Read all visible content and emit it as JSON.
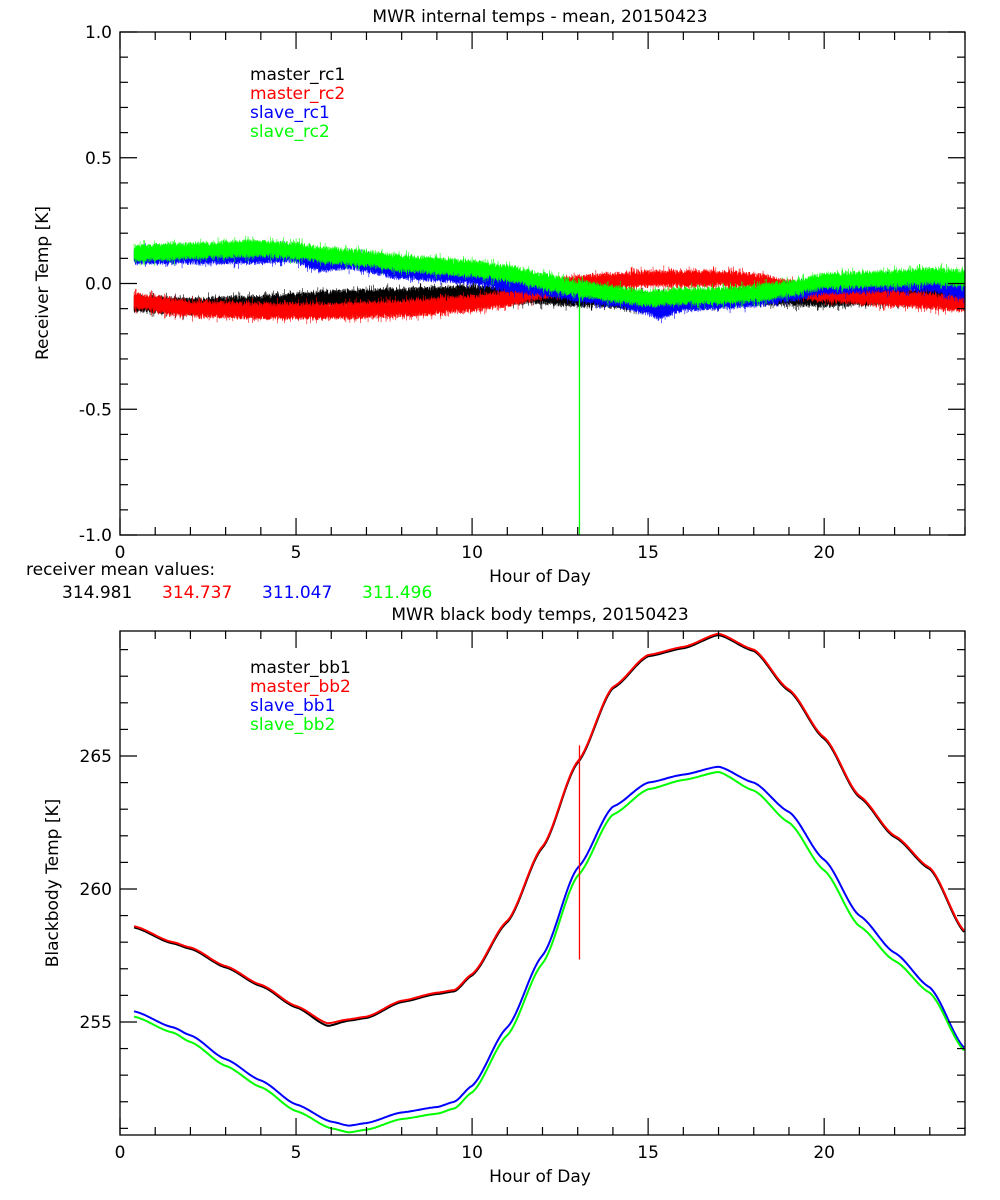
{
  "figure": {
    "receiver_mean_label": "receiver mean values:",
    "receiver_mean_values": [
      {
        "text": "314.981",
        "color": "#000000"
      },
      {
        "text": "314.737",
        "color": "#ff0000"
      },
      {
        "text": "311.047",
        "color": "#0000ff"
      },
      {
        "text": "311.496",
        "color": "#00ff00"
      }
    ]
  },
  "chart_data": [
    {
      "type": "line",
      "title": "MWR internal temps - mean, 20150423",
      "xlabel": "Hour of Day",
      "ylabel": "Receiver Temp [K]",
      "xlim": [
        0,
        24
      ],
      "ylim": [
        -1.0,
        1.0
      ],
      "xticks": [
        0,
        5,
        10,
        15,
        20
      ],
      "xtick_labels": [
        "0",
        "5",
        "10",
        "15",
        "20"
      ],
      "x_minor_step": 1,
      "yticks": [
        -1.0,
        -0.5,
        0.0,
        0.5,
        1.0
      ],
      "ytick_labels": [
        "-1.0",
        "-0.5",
        "0.0",
        "0.5",
        "1.0"
      ],
      "y_minor_step": 0.1,
      "grid": false,
      "legend_position": "top-left",
      "noisy": true,
      "series": [
        {
          "name": "master_rc1",
          "color": "#000000",
          "x": [
            0.4,
            2,
            4,
            6,
            8,
            10,
            12,
            13,
            15,
            17,
            18,
            20,
            22,
            24
          ],
          "y": [
            -0.08,
            -0.09,
            -0.08,
            -0.06,
            -0.05,
            -0.04,
            -0.05,
            -0.06,
            -0.07,
            -0.06,
            -0.05,
            -0.06,
            -0.05,
            -0.05
          ]
        },
        {
          "name": "master_rc2",
          "color": "#ff0000",
          "x": [
            0.4,
            2,
            4,
            6,
            8,
            10,
            11,
            12,
            13,
            14,
            15,
            17,
            18,
            19,
            20,
            22,
            24
          ],
          "y": [
            -0.07,
            -0.1,
            -0.11,
            -0.11,
            -0.1,
            -0.08,
            -0.06,
            -0.03,
            0.0,
            0.01,
            0.02,
            0.02,
            0.01,
            -0.02,
            -0.04,
            -0.06,
            -0.08
          ]
        },
        {
          "name": "slave_rc1",
          "color": "#0000ff",
          "x": [
            0.4,
            2,
            4,
            4.8,
            5.7,
            6.5,
            8,
            10,
            11,
            12,
            13,
            14,
            15,
            15.3,
            16,
            17,
            18,
            19,
            20,
            22,
            23,
            24
          ],
          "y": [
            0.11,
            0.11,
            0.11,
            0.12,
            0.08,
            0.09,
            0.05,
            0.03,
            0.0,
            -0.02,
            -0.04,
            -0.06,
            -0.09,
            -0.11,
            -0.08,
            -0.07,
            -0.06,
            -0.04,
            -0.01,
            0.0,
            0.0,
            -0.03
          ]
        },
        {
          "name": "slave_rc2",
          "color": "#00ff00",
          "x": [
            0.4,
            2,
            4,
            5,
            6,
            7,
            8,
            10,
            11,
            12,
            13,
            14,
            15,
            16,
            17,
            18,
            19,
            20,
            22,
            23,
            24
          ],
          "y": [
            0.12,
            0.13,
            0.14,
            0.13,
            0.11,
            0.1,
            0.08,
            0.06,
            0.04,
            0.01,
            -0.02,
            -0.04,
            -0.06,
            -0.05,
            -0.05,
            -0.04,
            -0.02,
            0.01,
            0.02,
            0.03,
            0.02
          ]
        }
      ],
      "annotations": [
        {
          "type": "spike",
          "series": "slave_rc2",
          "x": 13.05,
          "y_from": -0.01,
          "y_to": -1.0,
          "color": "#00ff00"
        }
      ]
    },
    {
      "type": "line",
      "title": "MWR black body temps, 20150423",
      "xlabel": "Hour of Day",
      "ylabel": "Blackbody Temp [K]",
      "xlim": [
        0,
        24
      ],
      "ylim": [
        250.75,
        269.7
      ],
      "xticks": [
        0,
        5,
        10,
        15,
        20
      ],
      "xtick_labels": [
        "0",
        "5",
        "10",
        "15",
        "20"
      ],
      "x_minor_step": 1,
      "yticks": [
        255,
        260,
        265
      ],
      "ytick_labels": [
        "255",
        "260",
        "265"
      ],
      "y_minor_step": 1,
      "grid": false,
      "legend_position": "top-left",
      "noisy": false,
      "series": [
        {
          "name": "master_bb1",
          "color": "#000000",
          "x": [
            0.4,
            1.5,
            2,
            3,
            4,
            5,
            5.9,
            6.5,
            7,
            8,
            9,
            9.5,
            10,
            11,
            12,
            13,
            14,
            15,
            16,
            17,
            18,
            19,
            20,
            21,
            22,
            23,
            24
          ],
          "y": [
            258.55,
            257.95,
            257.75,
            257.05,
            256.35,
            255.55,
            254.85,
            255.05,
            255.15,
            255.75,
            256.05,
            256.15,
            256.75,
            258.75,
            261.55,
            264.75,
            267.55,
            268.75,
            269.05,
            269.55,
            268.95,
            267.45,
            265.65,
            263.45,
            261.95,
            260.75,
            258.35
          ]
        },
        {
          "name": "master_bb2",
          "color": "#ff0000",
          "x": [
            0.4,
            1.5,
            2,
            3,
            4,
            5,
            5.9,
            6.5,
            7,
            8,
            9,
            9.5,
            10,
            11,
            12,
            13,
            14,
            15,
            16,
            17,
            18,
            19,
            20,
            21,
            22,
            23,
            24
          ],
          "y": [
            258.6,
            258.0,
            257.8,
            257.1,
            256.4,
            255.6,
            254.95,
            255.1,
            255.2,
            255.8,
            256.1,
            256.2,
            256.8,
            258.8,
            261.6,
            264.8,
            267.6,
            268.8,
            269.1,
            269.6,
            269.0,
            267.5,
            265.7,
            263.5,
            262.0,
            260.8,
            258.4
          ]
        },
        {
          "name": "slave_bb1",
          "color": "#0000ff",
          "x": [
            0.4,
            1.5,
            2,
            3,
            4,
            5,
            6,
            6.5,
            7,
            8,
            9,
            9.5,
            10,
            11,
            12,
            13,
            14,
            15,
            16,
            17,
            18,
            19,
            20,
            21,
            22,
            23,
            24
          ],
          "y": [
            255.4,
            254.8,
            254.5,
            253.6,
            252.8,
            251.9,
            251.25,
            251.1,
            251.2,
            251.6,
            251.8,
            252.0,
            252.6,
            254.8,
            257.5,
            260.8,
            263.1,
            264.0,
            264.3,
            264.6,
            264.0,
            262.9,
            261.1,
            259.0,
            257.6,
            256.3,
            254.0
          ]
        },
        {
          "name": "slave_bb2",
          "color": "#00ff00",
          "x": [
            0.4,
            1.5,
            2,
            3,
            4,
            5,
            6,
            6.5,
            7,
            8,
            9,
            9.5,
            10,
            11,
            12,
            13,
            14,
            15,
            16,
            17,
            18,
            19,
            20,
            21,
            22,
            23,
            24
          ],
          "y": [
            255.2,
            254.6,
            254.25,
            253.35,
            252.55,
            251.65,
            251.0,
            250.85,
            250.95,
            251.35,
            251.55,
            251.75,
            252.35,
            254.5,
            257.2,
            260.5,
            262.8,
            263.75,
            264.1,
            264.4,
            263.7,
            262.5,
            260.7,
            258.6,
            257.3,
            256.1,
            253.9
          ]
        }
      ],
      "annotations": [
        {
          "type": "spike",
          "series": "master_bb2",
          "x": 13.05,
          "y_from": 265.4,
          "y_to": 257.35,
          "color": "#ff0000"
        }
      ]
    }
  ]
}
